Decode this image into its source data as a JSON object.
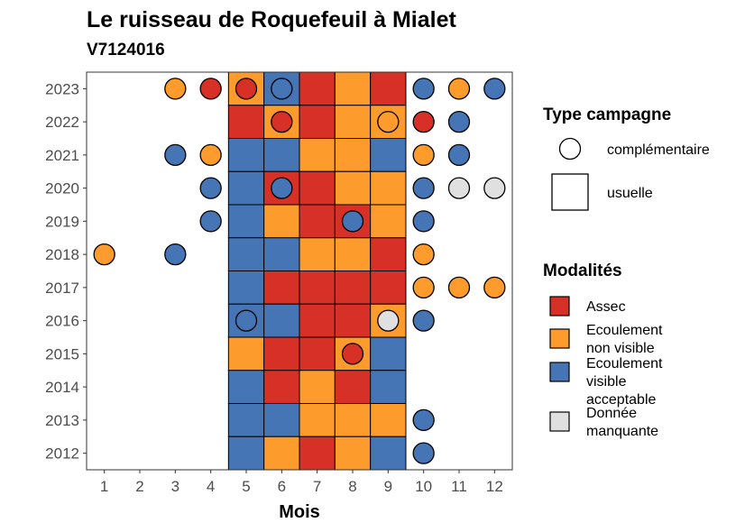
{
  "chart_data": {
    "type": "heatmap",
    "title": "Le ruisseau de Roquefeuil à Mialet",
    "subtitle": "V7124016",
    "xlabel": "Mois",
    "ylabel": "",
    "x_categories": [
      "1",
      "2",
      "3",
      "4",
      "5",
      "6",
      "7",
      "8",
      "9",
      "10",
      "11",
      "12"
    ],
    "y_categories": [
      "2012",
      "2013",
      "2014",
      "2015",
      "2016",
      "2017",
      "2018",
      "2019",
      "2020",
      "2021",
      "2022",
      "2023"
    ],
    "legend": {
      "type_title": "Type campagne",
      "type_entries": [
        {
          "key": "complementaire",
          "label": "complémentaire",
          "shape": "circle"
        },
        {
          "key": "usuelle",
          "label": "usuelle",
          "shape": "square"
        }
      ],
      "modalites_title": "Modalités",
      "modalites_entries": [
        {
          "key": "A",
          "label_lines": [
            "Assec"
          ]
        },
        {
          "key": "E",
          "label_lines": [
            "Ecoulement",
            "non visible"
          ]
        },
        {
          "key": "V",
          "label_lines": [
            "Ecoulement",
            "visible",
            "acceptable"
          ]
        },
        {
          "key": "M",
          "label_lines": [
            "Donnée",
            "manquante"
          ]
        }
      ]
    },
    "colors": {
      "A": "#d73027",
      "E": "#fd9b2c",
      "V": "#4575b4",
      "M": "#e0e0e0"
    },
    "usuelle": [
      {
        "year": "2023",
        "months": {
          "5": "E",
          "6": "V",
          "7": "A",
          "8": "E",
          "9": "A"
        }
      },
      {
        "year": "2022",
        "months": {
          "5": "A",
          "6": "E",
          "7": "A",
          "8": "E",
          "9": "E"
        }
      },
      {
        "year": "2021",
        "months": {
          "5": "V",
          "6": "V",
          "7": "E",
          "8": "E",
          "9": "V"
        }
      },
      {
        "year": "2020",
        "months": {
          "5": "V",
          "6": "A",
          "7": "A",
          "8": "E",
          "9": "E"
        }
      },
      {
        "year": "2019",
        "months": {
          "5": "V",
          "6": "E",
          "7": "A",
          "8": "A",
          "9": "E"
        }
      },
      {
        "year": "2018",
        "months": {
          "5": "V",
          "6": "V",
          "7": "E",
          "8": "E",
          "9": "A"
        }
      },
      {
        "year": "2017",
        "months": {
          "5": "V",
          "6": "A",
          "7": "A",
          "8": "A",
          "9": "A"
        }
      },
      {
        "year": "2016",
        "months": {
          "5": "V",
          "6": "V",
          "7": "A",
          "8": "A",
          "9": "E"
        }
      },
      {
        "year": "2015",
        "months": {
          "5": "E",
          "6": "A",
          "7": "A",
          "8": "E",
          "9": "V"
        }
      },
      {
        "year": "2014",
        "months": {
          "5": "V",
          "6": "A",
          "7": "E",
          "8": "A",
          "9": "V"
        }
      },
      {
        "year": "2013",
        "months": {
          "5": "V",
          "6": "V",
          "7": "E",
          "8": "E",
          "9": "E"
        }
      },
      {
        "year": "2012",
        "months": {
          "5": "V",
          "6": "E",
          "7": "A",
          "8": "E",
          "9": "V"
        }
      }
    ],
    "complementaire": [
      {
        "year": "2023",
        "month": "3",
        "value": "E"
      },
      {
        "year": "2023",
        "month": "4",
        "value": "A"
      },
      {
        "year": "2023",
        "month": "5",
        "value": "A"
      },
      {
        "year": "2023",
        "month": "6",
        "value": "V"
      },
      {
        "year": "2023",
        "month": "10",
        "value": "V"
      },
      {
        "year": "2023",
        "month": "11",
        "value": "E"
      },
      {
        "year": "2023",
        "month": "12",
        "value": "V"
      },
      {
        "year": "2022",
        "month": "6",
        "value": "A"
      },
      {
        "year": "2022",
        "month": "9",
        "value": "E"
      },
      {
        "year": "2022",
        "month": "10",
        "value": "A"
      },
      {
        "year": "2022",
        "month": "11",
        "value": "V"
      },
      {
        "year": "2021",
        "month": "3",
        "value": "V"
      },
      {
        "year": "2021",
        "month": "4",
        "value": "E"
      },
      {
        "year": "2021",
        "month": "10",
        "value": "E"
      },
      {
        "year": "2021",
        "month": "11",
        "value": "V"
      },
      {
        "year": "2020",
        "month": "4",
        "value": "V"
      },
      {
        "year": "2020",
        "month": "6",
        "value": "V"
      },
      {
        "year": "2020",
        "month": "10",
        "value": "V"
      },
      {
        "year": "2020",
        "month": "11",
        "value": "M"
      },
      {
        "year": "2020",
        "month": "12",
        "value": "M"
      },
      {
        "year": "2019",
        "month": "4",
        "value": "V"
      },
      {
        "year": "2019",
        "month": "8",
        "value": "V"
      },
      {
        "year": "2019",
        "month": "10",
        "value": "V"
      },
      {
        "year": "2018",
        "month": "1",
        "value": "E"
      },
      {
        "year": "2018",
        "month": "3",
        "value": "V"
      },
      {
        "year": "2018",
        "month": "10",
        "value": "E"
      },
      {
        "year": "2017",
        "month": "10",
        "value": "E"
      },
      {
        "year": "2017",
        "month": "11",
        "value": "E"
      },
      {
        "year": "2017",
        "month": "12",
        "value": "E"
      },
      {
        "year": "2016",
        "month": "5",
        "value": "V"
      },
      {
        "year": "2016",
        "month": "9",
        "value": "M"
      },
      {
        "year": "2016",
        "month": "10",
        "value": "V"
      },
      {
        "year": "2015",
        "month": "8",
        "value": "A"
      },
      {
        "year": "2013",
        "month": "10",
        "value": "V"
      },
      {
        "year": "2012",
        "month": "10",
        "value": "V"
      }
    ]
  }
}
